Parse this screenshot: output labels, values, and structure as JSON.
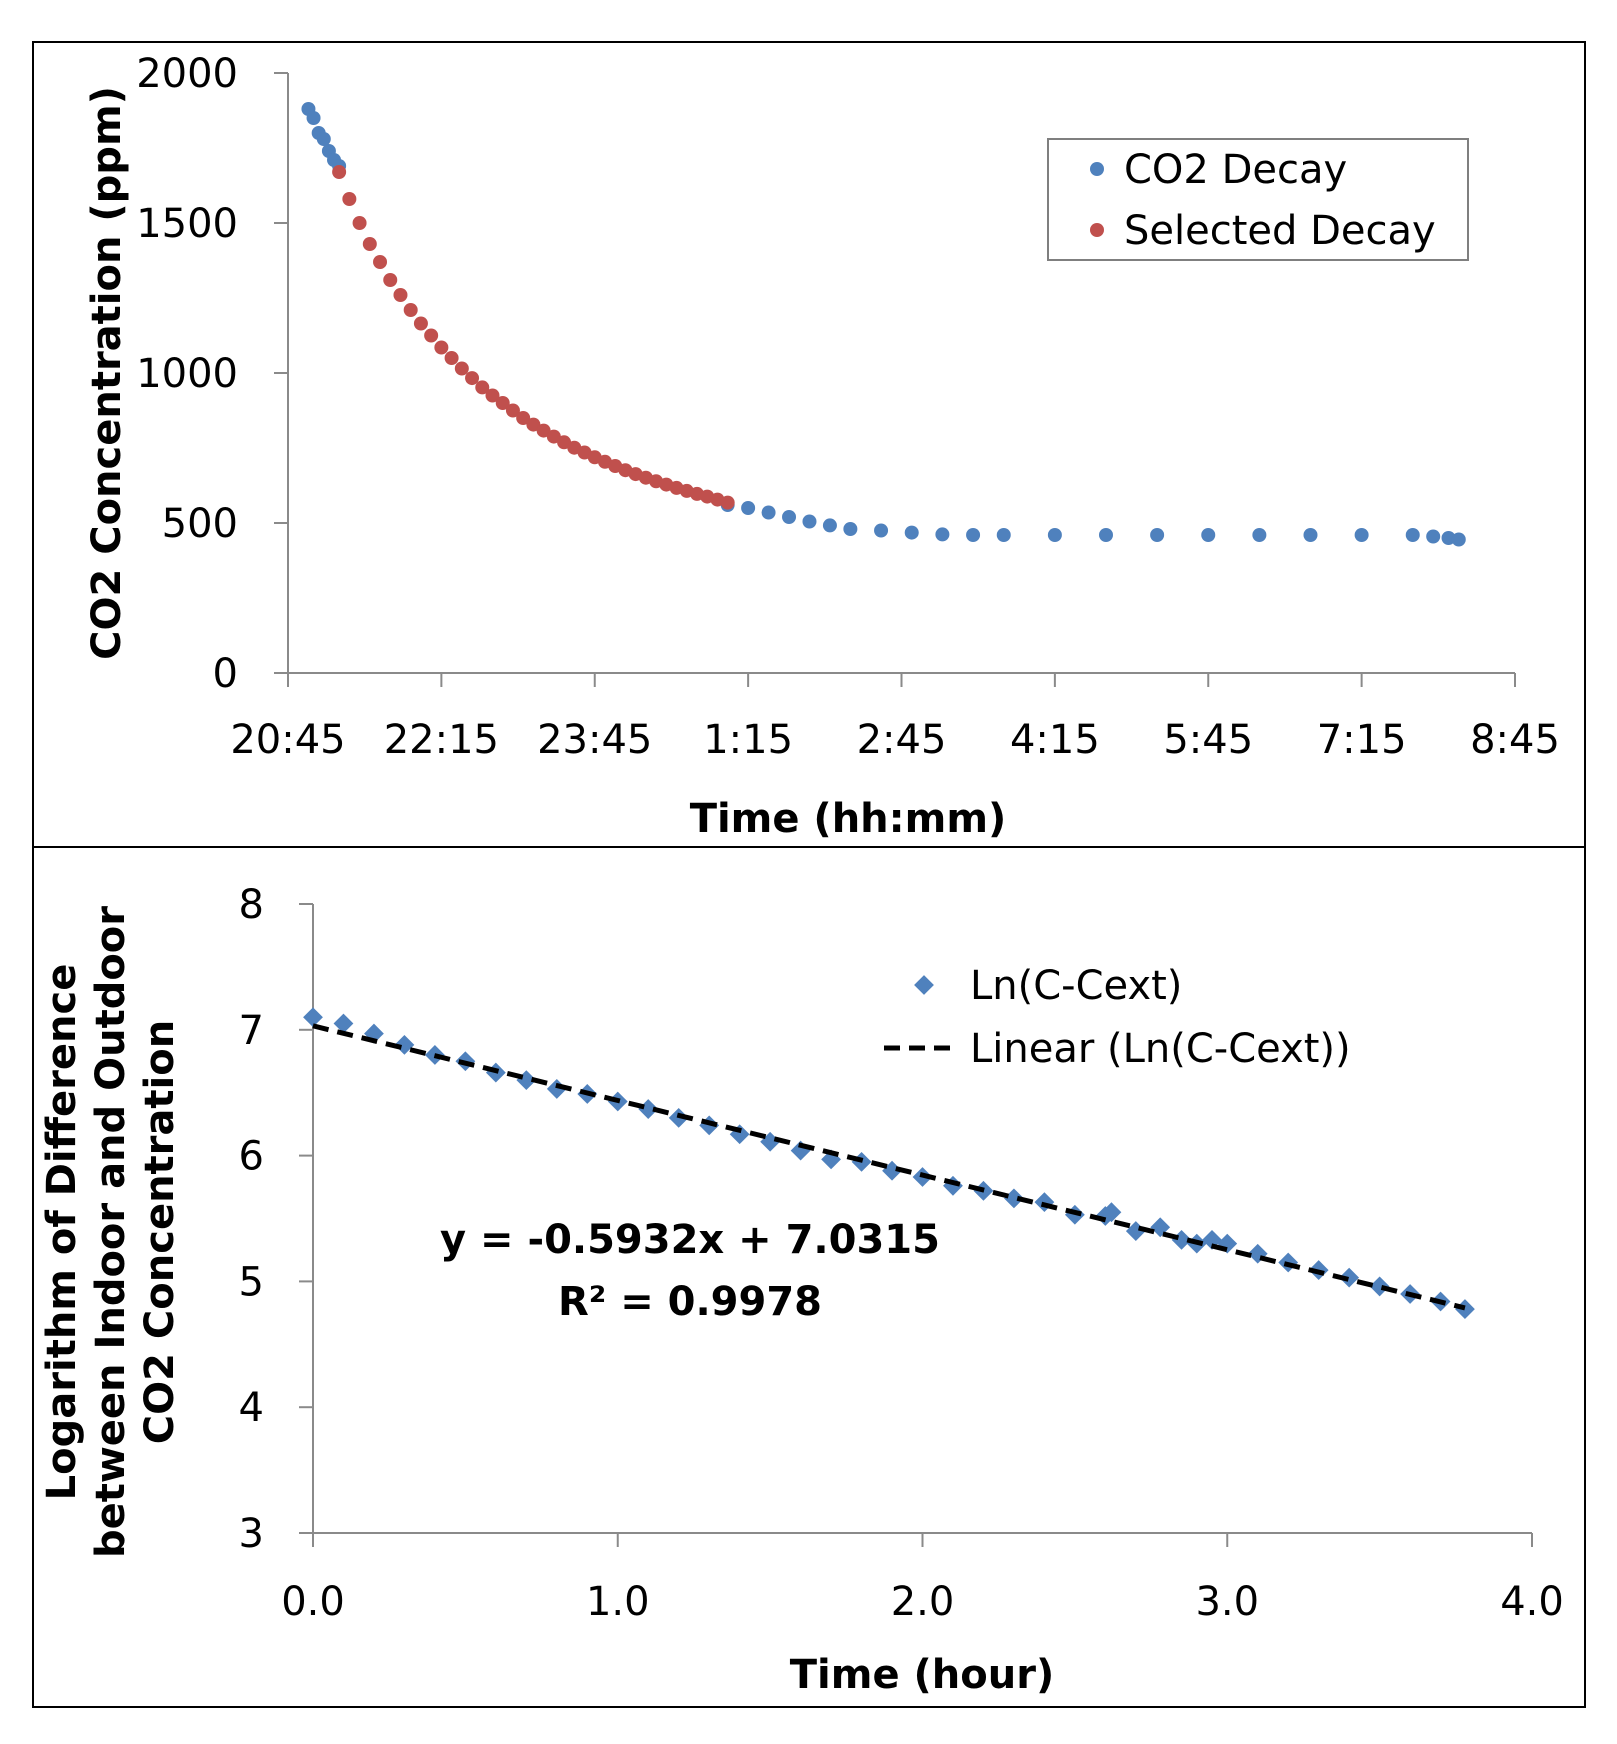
{
  "chart_data": [
    {
      "type": "scatter",
      "title": "",
      "xlabel": "Time (hh:mm)",
      "ylabel": "CO2 Concentration (ppm)",
      "x_unit": "hours since 20:45",
      "xlim": [
        0,
        12
      ],
      "ylim": [
        0,
        2000
      ],
      "x_tick_labels": [
        "20:45",
        "22:15",
        "23:45",
        "1:15",
        "2:45",
        "4:15",
        "5:45",
        "7:15",
        "8:45"
      ],
      "y_ticks": [
        0,
        500,
        1000,
        1500,
        2000
      ],
      "y_tick_labels": [
        "0",
        "500",
        "1000",
        "1500",
        "2000"
      ],
      "legend_position": "top-right",
      "colors": {
        "co2_decay": "#4f81bd",
        "selected_decay": "#c0504d"
      },
      "series": [
        {
          "name": "CO2 Decay",
          "x": [
            0.2,
            0.25,
            0.3,
            0.35,
            0.4,
            0.45,
            0.5,
            4.3,
            4.5,
            4.7,
            4.9,
            5.1,
            5.3,
            5.5,
            5.8,
            6.1,
            6.4,
            6.7,
            7.0,
            7.5,
            8.0,
            8.5,
            9.0,
            9.5,
            10.0,
            10.5,
            11.0,
            11.2,
            11.35,
            11.45
          ],
          "y": [
            1880,
            1850,
            1800,
            1780,
            1740,
            1710,
            1690,
            560,
            550,
            535,
            520,
            505,
            492,
            480,
            475,
            468,
            462,
            460,
            460,
            460,
            460,
            460,
            460,
            460,
            460,
            460,
            460,
            455,
            450,
            445
          ]
        },
        {
          "name": "Selected Decay",
          "x": [
            0.5,
            0.6,
            0.7,
            0.8,
            0.9,
            1.0,
            1.1,
            1.2,
            1.3,
            1.4,
            1.5,
            1.6,
            1.7,
            1.8,
            1.9,
            2.0,
            2.1,
            2.2,
            2.3,
            2.4,
            2.5,
            2.6,
            2.7,
            2.8,
            2.9,
            3.0,
            3.1,
            3.2,
            3.3,
            3.4,
            3.5,
            3.6,
            3.7,
            3.8,
            3.9,
            4.0,
            4.1,
            4.2,
            4.3
          ],
          "y": [
            1670,
            1580,
            1500,
            1430,
            1370,
            1310,
            1260,
            1210,
            1165,
            1125,
            1085,
            1050,
            1015,
            983,
            952,
            925,
            900,
            875,
            850,
            828,
            808,
            788,
            769,
            751,
            735,
            719,
            704,
            690,
            676,
            663,
            651,
            639,
            628,
            617,
            607,
            597,
            588,
            578,
            568
          ]
        }
      ]
    },
    {
      "type": "scatter",
      "title": "",
      "xlabel": "Time (hour)",
      "ylabel_lines": [
        "Logarithm of Difference",
        "between Indoor and Outdoor",
        "CO2 Concentration"
      ],
      "xlim": [
        0,
        4
      ],
      "ylim": [
        3,
        8
      ],
      "x_ticks": [
        0,
        1,
        2,
        3,
        4
      ],
      "x_tick_labels": [
        "0.0",
        "1.0",
        "2.0",
        "3.0",
        "4.0"
      ],
      "y_ticks": [
        3,
        4,
        5,
        6,
        7,
        8
      ],
      "y_tick_labels": [
        "3",
        "4",
        "5",
        "6",
        "7",
        "8"
      ],
      "legend_position": "top-right",
      "colors": {
        "points": "#4f81bd",
        "trend": "#000000"
      },
      "series": [
        {
          "name": "Ln(C-Cext)",
          "x": [
            0.0,
            0.1,
            0.2,
            0.3,
            0.4,
            0.5,
            0.6,
            0.7,
            0.8,
            0.9,
            1.0,
            1.1,
            1.2,
            1.3,
            1.4,
            1.5,
            1.6,
            1.7,
            1.8,
            1.9,
            2.0,
            2.1,
            2.2,
            2.3,
            2.4,
            2.5,
            2.6,
            2.62,
            2.7,
            2.78,
            2.85,
            2.9,
            2.95,
            3.0,
            3.1,
            3.2,
            3.3,
            3.4,
            3.5,
            3.6,
            3.7,
            3.78
          ],
          "y": [
            7.1,
            7.05,
            6.97,
            6.88,
            6.8,
            6.75,
            6.66,
            6.6,
            6.53,
            6.49,
            6.43,
            6.37,
            6.3,
            6.24,
            6.17,
            6.11,
            6.04,
            5.97,
            5.95,
            5.88,
            5.83,
            5.76,
            5.72,
            5.66,
            5.63,
            5.53,
            5.52,
            5.55,
            5.4,
            5.43,
            5.33,
            5.3,
            5.33,
            5.3,
            5.22,
            5.15,
            5.09,
            5.03,
            4.96,
            4.9,
            4.84,
            4.78
          ]
        },
        {
          "name": "Linear (Ln(C-Cext))",
          "slope": -0.5932,
          "intercept": 7.0315,
          "x_range": [
            0,
            3.78
          ]
        }
      ],
      "equation_text": "y = -0.5932x + 7.0315",
      "r2_text": "R² = 0.9978"
    }
  ]
}
